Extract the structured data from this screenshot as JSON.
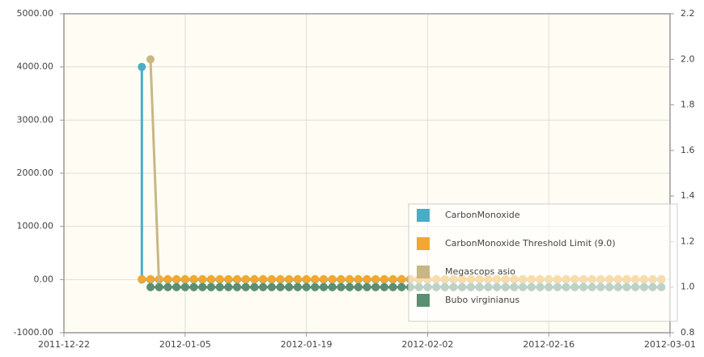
{
  "chart_data": {
    "type": "line",
    "x": [
      "2011-12-31",
      "2011-12-31",
      "2012-01-01",
      "2012-01-02",
      "2012-01-03",
      "2012-01-04",
      "2012-01-05",
      "2012-01-06",
      "2012-01-07",
      "2012-01-08",
      "2012-01-09",
      "2012-01-10",
      "2012-01-11",
      "2012-01-12",
      "2012-01-13",
      "2012-01-14",
      "2012-01-15",
      "2012-01-16",
      "2012-01-17",
      "2012-01-18",
      "2012-01-19",
      "2012-01-20",
      "2012-01-21",
      "2012-01-22",
      "2012-01-23",
      "2012-01-24",
      "2012-01-25",
      "2012-01-26",
      "2012-01-27",
      "2012-01-28",
      "2012-01-29",
      "2012-01-30",
      "2012-01-31",
      "2012-02-01",
      "2012-02-02",
      "2012-02-03",
      "2012-02-04",
      "2012-02-05",
      "2012-02-06",
      "2012-02-07",
      "2012-02-08",
      "2012-02-09",
      "2012-02-10",
      "2012-02-11",
      "2012-02-12",
      "2012-02-13",
      "2012-02-14",
      "2012-02-15",
      "2012-02-16",
      "2012-02-17",
      "2012-02-18",
      "2012-02-19",
      "2012-02-20",
      "2012-02-21",
      "2012-02-22",
      "2012-02-23",
      "2012-02-24",
      "2012-02-25",
      "2012-02-26",
      "2012-02-27",
      "2012-02-28",
      "2012-02-29"
    ],
    "series": [
      {
        "name": "CarbonMonoxide",
        "color": "#4bacc6",
        "axis": "y",
        "values": [
          4000,
          0,
          0,
          0,
          0,
          0,
          0,
          0,
          0,
          0,
          0,
          0,
          0,
          0,
          0,
          0,
          0,
          0,
          0,
          0,
          0,
          0,
          0,
          0,
          0,
          0,
          0,
          0,
          0,
          0,
          0,
          0,
          0,
          0,
          0,
          0,
          0,
          0,
          0,
          0,
          0,
          0,
          0,
          0,
          0,
          0,
          0,
          0,
          0,
          0,
          0,
          0,
          0,
          0,
          0,
          0,
          0,
          0,
          0,
          0,
          0,
          0
        ]
      },
      {
        "name": "CarbonMonoxide Threshold Limit (9.0)",
        "color": "#f0a830",
        "axis": "y",
        "values": [
          9,
          9,
          9,
          9,
          9,
          9,
          9,
          9,
          9,
          9,
          9,
          9,
          9,
          9,
          9,
          9,
          9,
          9,
          9,
          9,
          9,
          9,
          9,
          9,
          9,
          9,
          9,
          9,
          9,
          9,
          9,
          9,
          9,
          9,
          9,
          9,
          9,
          9,
          9,
          9,
          9,
          9,
          9,
          9,
          9,
          9,
          9,
          9,
          9,
          9,
          9,
          9,
          9,
          9,
          9,
          9,
          9,
          9,
          9,
          9,
          9,
          9
        ]
      },
      {
        "name": "Megascops asio",
        "color": "#c8b785",
        "axis": "y2",
        "values": [
          null,
          null,
          2,
          1,
          1,
          1,
          1,
          1,
          1,
          1,
          1,
          1,
          1,
          1,
          1,
          1,
          1,
          1,
          1,
          1,
          1,
          1,
          1,
          1,
          1,
          1,
          1,
          1,
          1,
          1,
          1,
          1,
          1,
          1,
          1,
          1,
          1,
          1,
          1,
          1,
          1,
          1,
          1,
          1,
          1,
          1,
          1,
          1,
          1,
          1,
          1,
          1,
          1,
          1,
          1,
          1,
          1,
          1,
          1,
          1,
          1,
          1
        ]
      },
      {
        "name": "Bubo virginianus",
        "color": "#5a8f72",
        "axis": "y2",
        "values": [
          null,
          null,
          1,
          1,
          1,
          1,
          1,
          1,
          1,
          1,
          1,
          1,
          1,
          1,
          1,
          1,
          1,
          1,
          1,
          1,
          1,
          1,
          1,
          1,
          1,
          1,
          1,
          1,
          1,
          1,
          1,
          1,
          1,
          1,
          1,
          1,
          1,
          1,
          1,
          1,
          1,
          1,
          1,
          1,
          1,
          1,
          1,
          1,
          1,
          1,
          1,
          1,
          1,
          1,
          1,
          1,
          1,
          1,
          1,
          1,
          1,
          1
        ]
      }
    ],
    "xlim": [
      "2011-12-22",
      "2012-03-01"
    ],
    "xticks": [
      "2011-12-22",
      "2012-01-05",
      "2012-01-19",
      "2012-02-02",
      "2012-02-16",
      "2012-03-01"
    ],
    "ylim": [
      -1000,
      5000
    ],
    "yticks": [
      {
        "value": -1000,
        "label": "-1000.00"
      },
      {
        "value": 0,
        "label": "0.00"
      },
      {
        "value": 1000,
        "label": "1000.00"
      },
      {
        "value": 2000,
        "label": "2000.00"
      },
      {
        "value": 3000,
        "label": "3000.00"
      },
      {
        "value": 4000,
        "label": "4000.00"
      },
      {
        "value": 5000,
        "label": "5000.00"
      }
    ],
    "y2lim": [
      0.8,
      2.2
    ],
    "y2ticks": [
      0.8,
      {
        "value": 1,
        "label": "1.0"
      },
      1.2,
      1.4,
      1.6,
      1.8,
      {
        "value": 2,
        "label": "2.0"
      },
      2.2
    ],
    "grid": true,
    "legend": "lower right"
  }
}
